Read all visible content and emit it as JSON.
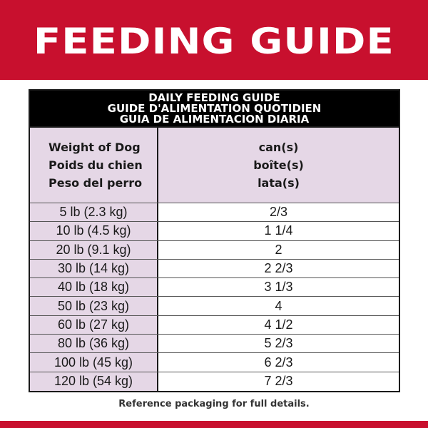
{
  "banner": {
    "title": "FEEDING GUIDE"
  },
  "table": {
    "header_lines": [
      "DAILY FEEDING GUIDE",
      "GUIDE D'ALIMENTATION QUOTIDIEN",
      "GUIA DE ALIMENTACION DIARIA"
    ],
    "col_weight_lines": [
      "Weight of Dog",
      "Poids du chien",
      "Peso del perro"
    ],
    "col_amount_lines": [
      "can(s)",
      "boîte(s)",
      "lata(s)"
    ],
    "rows": [
      {
        "weight": "5 lb (2.3 kg)",
        "amount": "2/3"
      },
      {
        "weight": "10 lb (4.5 kg)",
        "amount": "1 1/4"
      },
      {
        "weight": "20 lb (9.1 kg)",
        "amount": "2"
      },
      {
        "weight": "30 lb (14 kg)",
        "amount": "2 2/3"
      },
      {
        "weight": "40 lb (18 kg)",
        "amount": "3 1/3"
      },
      {
        "weight": "50 lb (23 kg)",
        "amount": "4"
      },
      {
        "weight": "60 lb (27 kg)",
        "amount": "4 1/2"
      },
      {
        "weight": "80 lb (36 kg)",
        "amount": "5 2/3"
      },
      {
        "weight": "100 lb (45 kg)",
        "amount": "6 2/3"
      },
      {
        "weight": "120 lb (54 kg)",
        "amount": "7 2/3"
      }
    ]
  },
  "footnote": "Reference packaging for full details.",
  "colors": {
    "brand_red": "#c8102e",
    "header_black": "#000000",
    "lavender": "#e5d7e6"
  }
}
